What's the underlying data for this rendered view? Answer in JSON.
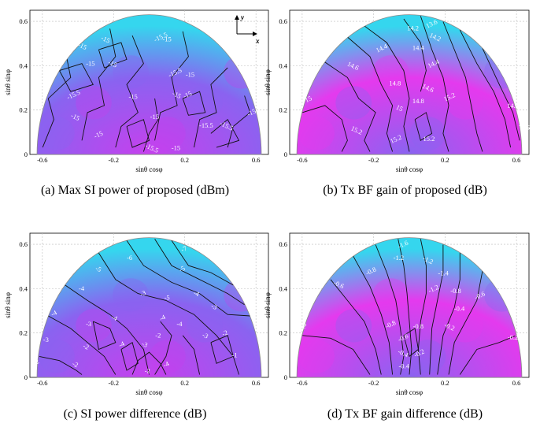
{
  "figure": {
    "panels": [
      {
        "id": "a",
        "caption": "(a) Max SI power of proposed (dBm)"
      },
      {
        "id": "b",
        "caption": "(b) Tx BF gain of proposed (dB)"
      },
      {
        "id": "c",
        "caption": "(c) SI power difference (dB)"
      },
      {
        "id": "d",
        "caption": "(d) Tx BF gain difference (dB)"
      }
    ]
  },
  "chart_data": [
    {
      "type": "contour",
      "panel": "a",
      "xlabel": "sinθ cosφ",
      "ylabel": "sinθ sinφ",
      "xlim": [
        -0.67,
        0.67
      ],
      "ylim": [
        0,
        0.65
      ],
      "xticks": [
        -0.6,
        -0.2,
        0.2,
        0.6
      ],
      "yticks": [
        0,
        0.2,
        0.4,
        0.6
      ],
      "grid": true,
      "axes_indicator": {
        "y_label": "y",
        "x_label": "x"
      },
      "colors": [
        "#8a63f0",
        "#c640ee",
        "#35d6ee"
      ],
      "contour_labels": [
        {
          "x": -0.6,
          "y": 0.56,
          "text": "-15"
        },
        {
          "x": -0.51,
          "y": 0.48,
          "text": "-15.5"
        },
        {
          "x": -0.25,
          "y": 0.51,
          "text": "-15"
        },
        {
          "x": 0.07,
          "y": 0.52,
          "text": "-15.5"
        },
        {
          "x": 0.1,
          "y": 0.51,
          "text": "-15"
        },
        {
          "x": -0.38,
          "y": 0.48,
          "text": "-15"
        },
        {
          "x": -0.54,
          "y": 0.42,
          "text": "-15"
        },
        {
          "x": -0.33,
          "y": 0.4,
          "text": "-15"
        },
        {
          "x": -0.21,
          "y": 0.4,
          "text": "-15"
        },
        {
          "x": 0.15,
          "y": 0.36,
          "text": "-15.5"
        },
        {
          "x": 0.23,
          "y": 0.35,
          "text": "-15"
        },
        {
          "x": -0.6,
          "y": 0.28,
          "text": "-15"
        },
        {
          "x": -0.42,
          "y": 0.26,
          "text": "-15.5"
        },
        {
          "x": -0.09,
          "y": 0.25,
          "text": "-15"
        },
        {
          "x": 0.15,
          "y": 0.26,
          "text": "-15"
        },
        {
          "x": 0.22,
          "y": 0.26,
          "text": "-15"
        },
        {
          "x": 0.03,
          "y": 0.16,
          "text": "-15"
        },
        {
          "x": -0.42,
          "y": 0.16,
          "text": "-15"
        },
        {
          "x": -0.28,
          "y": 0.08,
          "text": "-15"
        },
        {
          "x": 0.32,
          "y": 0.12,
          "text": "-15.5"
        },
        {
          "x": 0.43,
          "y": 0.12,
          "text": "-15.5"
        },
        {
          "x": 0.58,
          "y": 0.18,
          "text": "-15"
        },
        {
          "x": 0.15,
          "y": 0.02,
          "text": "-15"
        },
        {
          "x": 0.01,
          "y": 0.02,
          "text": "-15.5"
        }
      ]
    },
    {
      "type": "contour",
      "panel": "b",
      "xlabel": "sinθ cosφ",
      "ylabel": "sinθ sinφ",
      "xlim": [
        -0.67,
        0.67
      ],
      "ylim": [
        0,
        0.65
      ],
      "xticks": [
        -0.6,
        -0.2,
        0.2,
        0.6
      ],
      "yticks": [
        0,
        0.2,
        0.4,
        0.6
      ],
      "grid": true,
      "colors": [
        "#e43aee",
        "#8a63f0",
        "#35d6ee"
      ],
      "contour_labels": [
        {
          "x": 0.13,
          "y": 0.58,
          "text": "13.6"
        },
        {
          "x": 0.02,
          "y": 0.56,
          "text": "14.2"
        },
        {
          "x": 0.14,
          "y": 0.52,
          "text": "14.2"
        },
        {
          "x": -0.15,
          "y": 0.47,
          "text": "14.4"
        },
        {
          "x": 0.05,
          "y": 0.47,
          "text": "14.4"
        },
        {
          "x": -0.32,
          "y": 0.39,
          "text": "14.6"
        },
        {
          "x": 0.14,
          "y": 0.4,
          "text": "14.4"
        },
        {
          "x": -0.08,
          "y": 0.31,
          "text": "14.8"
        },
        {
          "x": 0.1,
          "y": 0.29,
          "text": "14.6"
        },
        {
          "x": -0.56,
          "y": 0.24,
          "text": "15"
        },
        {
          "x": 0.05,
          "y": 0.23,
          "text": "14.8"
        },
        {
          "x": -0.06,
          "y": 0.2,
          "text": "15"
        },
        {
          "x": 0.23,
          "y": 0.25,
          "text": "15.2"
        },
        {
          "x": 0.58,
          "y": 0.21,
          "text": "14.8"
        },
        {
          "x": -0.3,
          "y": 0.1,
          "text": "15.2"
        },
        {
          "x": -0.07,
          "y": 0.06,
          "text": "15.2"
        },
        {
          "x": 0.11,
          "y": 0.06,
          "text": "15.2"
        },
        {
          "x": 0.64,
          "y": 0.12,
          "text": "14.6"
        }
      ]
    },
    {
      "type": "contour",
      "panel": "c",
      "xlabel": "sinθ cosφ",
      "ylabel": "sinθ sinφ",
      "xlim": [
        -0.67,
        0.67
      ],
      "ylim": [
        0,
        0.65
      ],
      "xticks": [
        -0.6,
        -0.2,
        0.2,
        0.6
      ],
      "yticks": [
        0,
        0.2,
        0.4,
        0.6
      ],
      "grid": true,
      "colors": [
        "#8a63f0",
        "#c640ee",
        "#35d6ee"
      ],
      "contour_labels": [
        {
          "x": 0.2,
          "y": 0.57,
          "text": "-7"
        },
        {
          "x": -0.11,
          "y": 0.53,
          "text": "-6"
        },
        {
          "x": -0.29,
          "y": 0.48,
          "text": "-5"
        },
        {
          "x": 0.19,
          "y": 0.48,
          "text": "-5"
        },
        {
          "x": -0.38,
          "y": 0.39,
          "text": "-4"
        },
        {
          "x": 0.26,
          "y": 0.37,
          "text": "-4"
        },
        {
          "x": -0.03,
          "y": 0.37,
          "text": "-3"
        },
        {
          "x": 0.1,
          "y": 0.35,
          "text": "-5"
        },
        {
          "x": 0.36,
          "y": 0.31,
          "text": "-3"
        },
        {
          "x": -0.53,
          "y": 0.28,
          "text": "-4"
        },
        {
          "x": -0.34,
          "y": 0.23,
          "text": "-3"
        },
        {
          "x": -0.2,
          "y": 0.26,
          "text": "-4"
        },
        {
          "x": 0.08,
          "y": 0.26,
          "text": "-4"
        },
        {
          "x": 0.17,
          "y": 0.23,
          "text": "-4"
        },
        {
          "x": 0.31,
          "y": 0.18,
          "text": "-3"
        },
        {
          "x": 0.43,
          "y": 0.19,
          "text": "-2"
        },
        {
          "x": -0.58,
          "y": 0.16,
          "text": "-3"
        },
        {
          "x": -0.36,
          "y": 0.13,
          "text": "-2"
        },
        {
          "x": -0.15,
          "y": 0.14,
          "text": "-4"
        },
        {
          "x": 0.05,
          "y": 0.18,
          "text": "-2"
        },
        {
          "x": -0.03,
          "y": 0.14,
          "text": "-3"
        },
        {
          "x": -0.63,
          "y": 0.06,
          "text": "-2"
        },
        {
          "x": 0.48,
          "y": 0.09,
          "text": "-1"
        },
        {
          "x": -0.42,
          "y": 0.05,
          "text": "-2"
        },
        {
          "x": 0.1,
          "y": 0.05,
          "text": "-4"
        },
        {
          "x": -0.01,
          "y": 0.02,
          "text": "-2"
        }
      ]
    },
    {
      "type": "contour",
      "panel": "d",
      "xlabel": "sinθ cosφ",
      "ylabel": "sinθ sinφ",
      "xlim": [
        -0.67,
        0.67
      ],
      "ylim": [
        0,
        0.65
      ],
      "xticks": [
        -0.6,
        -0.2,
        0.2,
        0.6
      ],
      "yticks": [
        0,
        0.2,
        0.4,
        0.6
      ],
      "grid": true,
      "colors": [
        "#e43aee",
        "#8a63f0",
        "#35d6ee"
      ],
      "contour_labels": [
        {
          "x": -0.03,
          "y": 0.59,
          "text": "-1.6"
        },
        {
          "x": -0.06,
          "y": 0.53,
          "text": "-1.2"
        },
        {
          "x": 0.1,
          "y": 0.52,
          "text": "-1.2"
        },
        {
          "x": -0.21,
          "y": 0.47,
          "text": "-0.8"
        },
        {
          "x": 0.19,
          "y": 0.46,
          "text": "-1.4"
        },
        {
          "x": -0.4,
          "y": 0.41,
          "text": "-0.6"
        },
        {
          "x": 0.14,
          "y": 0.39,
          "text": "-1.2"
        },
        {
          "x": 0.26,
          "y": 0.38,
          "text": "-0.8"
        },
        {
          "x": -0.58,
          "y": 0.36,
          "text": "-0.4"
        },
        {
          "x": 0.4,
          "y": 0.36,
          "text": "-0.6"
        },
        {
          "x": 0.28,
          "y": 0.3,
          "text": "-0.4"
        },
        {
          "x": -0.61,
          "y": 0.23,
          "text": "-0.2"
        },
        {
          "x": -0.1,
          "y": 0.23,
          "text": "-0.8"
        },
        {
          "x": 0.05,
          "y": 0.22,
          "text": "-0.8"
        },
        {
          "x": 0.22,
          "y": 0.22,
          "text": "-0.2"
        },
        {
          "x": -0.03,
          "y": 0.17,
          "text": "-0.6"
        },
        {
          "x": 0.58,
          "y": 0.17,
          "text": "-0.2"
        },
        {
          "x": -0.04,
          "y": 0.1,
          "text": "-0.4"
        },
        {
          "x": 0.06,
          "y": 0.1,
          "text": "-0.2"
        },
        {
          "x": -0.03,
          "y": 0.04,
          "text": "-0.4"
        }
      ]
    }
  ]
}
